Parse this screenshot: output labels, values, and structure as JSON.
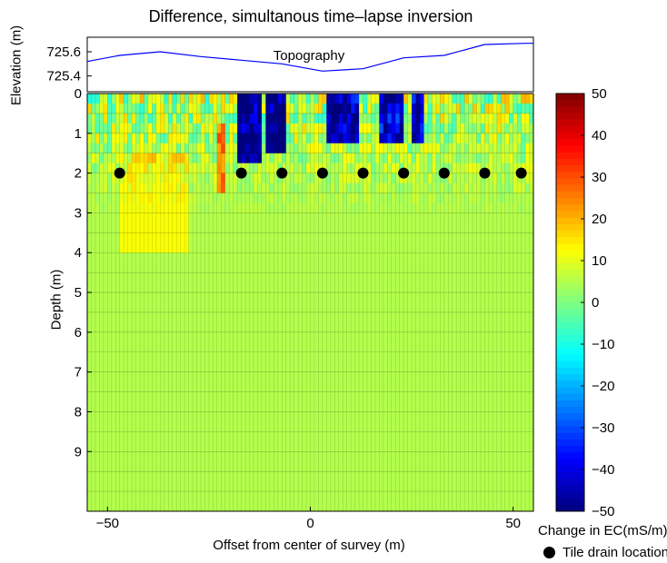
{
  "chart_data": [
    {
      "type": "line",
      "panel": "topography",
      "title": "Difference,  simultanous time–lapse inversion",
      "annotation": "Topography",
      "ylabel": "Elevation (m)",
      "yticks": [
        "725.6",
        "725.4"
      ],
      "ytick_values": [
        725.6,
        725.4
      ],
      "xlim": [
        -55,
        55
      ],
      "ylim": [
        725.27,
        725.72
      ],
      "line_color": "#0000ff",
      "x": [
        -55,
        -47,
        -37,
        -27,
        -17,
        -7,
        3,
        13,
        23,
        33,
        43,
        53,
        55
      ],
      "y": [
        725.52,
        725.57,
        725.6,
        725.56,
        725.53,
        725.5,
        725.44,
        725.46,
        725.55,
        725.57,
        725.66,
        725.67,
        725.67
      ]
    },
    {
      "type": "heatmap",
      "panel": "depth-section",
      "xlabel": "Offset from center of survey (m)",
      "ylabel": "Depth (m)",
      "xlim": [
        -55,
        55
      ],
      "ylim": [
        0,
        10.5
      ],
      "xticks": [
        "−50",
        "0",
        "50"
      ],
      "xtick_values": [
        -50,
        0,
        50
      ],
      "yticks": [
        "0",
        "1",
        "2",
        "3",
        "4",
        "5",
        "6",
        "7",
        "8",
        "9"
      ],
      "ytick_values": [
        0,
        1,
        2,
        3,
        4,
        5,
        6,
        7,
        8,
        9
      ],
      "grid": true,
      "colormap": "jet",
      "clim": [
        -50,
        50
      ],
      "colorbar_ticks": [
        "50",
        "40",
        "30",
        "20",
        "10",
        "0",
        "−10",
        "−20",
        "−30",
        "−40",
        "−50"
      ],
      "colorbar_tick_values": [
        50,
        40,
        30,
        20,
        10,
        0,
        -10,
        -20,
        -30,
        -40,
        -50
      ],
      "colorbar_label": "Change in EC(mS/m)",
      "dominant_value_at_depth": 5,
      "anomalies": [
        {
          "x_range": [
            -18,
            -12
          ],
          "depth_range": [
            0,
            1.8
          ],
          "value": -50
        },
        {
          "x_range": [
            -11,
            -6
          ],
          "depth_range": [
            0,
            1.5
          ],
          "value": -50
        },
        {
          "x_range": [
            4,
            12
          ],
          "depth_range": [
            0,
            1.3
          ],
          "value": -45
        },
        {
          "x_range": [
            17,
            23
          ],
          "depth_range": [
            0,
            1.2
          ],
          "value": -40
        },
        {
          "x_range": [
            25,
            28
          ],
          "depth_range": [
            0,
            1.2
          ],
          "value": -42
        },
        {
          "x_range": [
            -23,
            -21
          ],
          "depth_range": [
            0.8,
            2.6
          ],
          "value": 25
        },
        {
          "x_range": [
            -47,
            -30
          ],
          "depth_range": [
            1.5,
            4
          ],
          "value": 12
        }
      ],
      "tile_drains": {
        "legend_label": "Tile drain location",
        "depth": 2,
        "x": [
          -47,
          -17,
          -7,
          3,
          13,
          23,
          33,
          43,
          52
        ]
      }
    }
  ]
}
